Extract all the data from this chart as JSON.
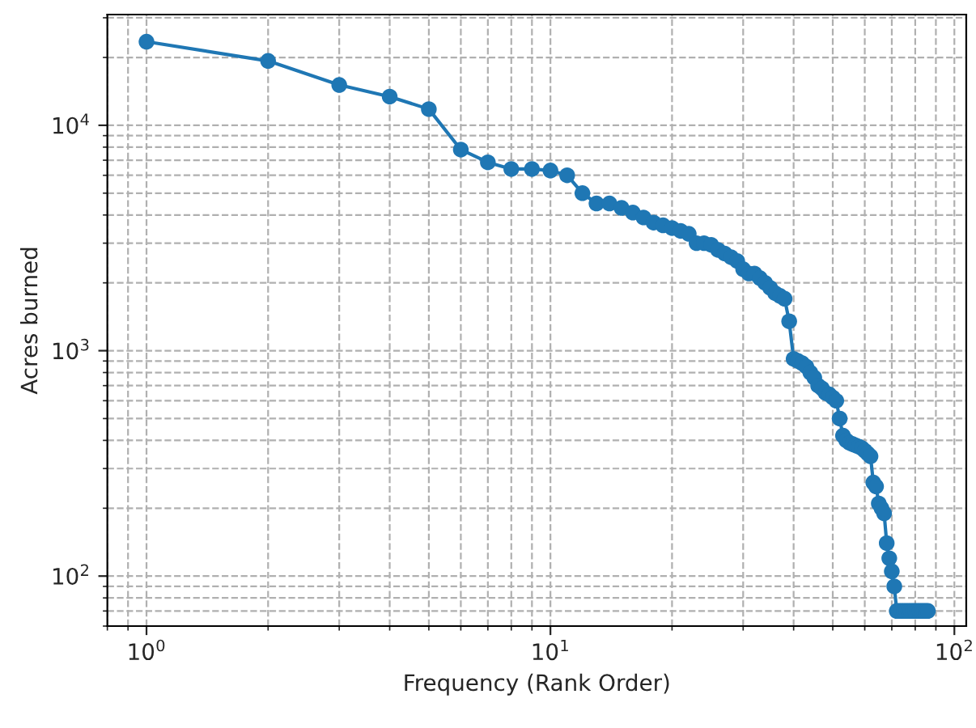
{
  "chart_data": {
    "type": "line",
    "xlabel": "Frequency (Rank Order)",
    "ylabel": "Acres burned",
    "log": "xy",
    "grid": true,
    "marker": "circle",
    "line_style": "solid",
    "x": [
      1,
      2,
      3,
      4,
      5,
      6,
      7,
      8,
      9,
      10,
      11,
      12,
      13,
      14,
      15,
      16,
      17,
      18,
      19,
      20,
      21,
      22,
      23,
      24,
      25,
      26,
      27,
      28,
      29,
      30,
      31,
      32,
      33,
      34,
      35,
      36,
      37,
      38,
      39,
      40,
      41,
      42,
      43,
      44,
      45,
      46,
      47,
      48,
      49,
      50,
      51,
      52,
      53,
      54,
      55,
      56,
      57,
      58,
      59,
      60,
      61,
      62,
      63,
      64,
      65,
      66,
      67,
      68,
      69,
      70,
      71,
      72,
      73,
      74,
      75,
      76,
      77,
      78,
      79,
      80,
      81,
      82,
      83,
      84,
      85,
      86
    ],
    "series": [
      {
        "color": "#1f77b4",
        "values": [
          23500,
          19300,
          15100,
          13400,
          11800,
          7800,
          6850,
          6400,
          6400,
          6300,
          6000,
          5000,
          4500,
          4500,
          4300,
          4100,
          3900,
          3700,
          3600,
          3500,
          3400,
          3300,
          3000,
          3000,
          2950,
          2800,
          2700,
          2600,
          2500,
          2300,
          2200,
          2200,
          2100,
          2000,
          1900,
          1800,
          1750,
          1700,
          1350,
          920,
          900,
          880,
          850,
          800,
          760,
          700,
          680,
          650,
          640,
          620,
          600,
          500,
          420,
          400,
          390,
          385,
          380,
          375,
          370,
          360,
          350,
          340,
          260,
          250,
          210,
          200,
          190,
          140,
          120,
          105,
          90,
          70,
          70,
          70,
          70,
          70,
          70,
          70,
          70,
          70,
          70,
          70,
          70,
          70,
          70,
          70
        ]
      }
    ],
    "xlim": [
      0.8,
      107
    ],
    "ylim": [
      60,
      31000
    ],
    "xticks": [
      {
        "value": 1,
        "label": "10$^{0}$"
      },
      {
        "value": 10,
        "label": "10$^{1}$"
      },
      {
        "value": 100,
        "label": "10$^{2}$"
      }
    ],
    "yticks": [
      {
        "value": 100,
        "label": "10$^{2}$"
      },
      {
        "value": 1000,
        "label": "10$^{3}$"
      },
      {
        "value": 10000,
        "label": "10$^{4}$"
      }
    ]
  }
}
